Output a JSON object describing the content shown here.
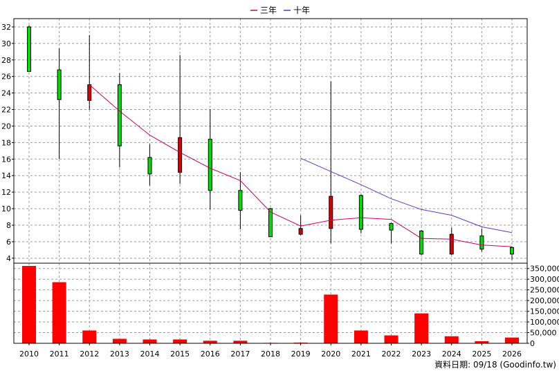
{
  "chart_data": {
    "type": "candlestick",
    "legend": [
      {
        "name": "三年",
        "color": "#cc0066"
      },
      {
        "name": "十年",
        "color": "#6633cc"
      }
    ],
    "legend_placement": "top-center",
    "grid": true,
    "price_axis": {
      "ticks": [
        4,
        6,
        8,
        10,
        12,
        14,
        16,
        18,
        20,
        22,
        24,
        26,
        28,
        30,
        32
      ],
      "ylim": [
        3.4,
        33.0
      ],
      "side": "left"
    },
    "volume_axis": {
      "ticks": [
        0,
        50000,
        100000,
        150000,
        200000,
        250000,
        300000,
        350000
      ],
      "tick_labels": [
        "0",
        "50,000",
        "100,000",
        "150,000",
        "200,000",
        "250,000",
        "300,000",
        "350,000"
      ],
      "ylim": [
        0,
        375000
      ],
      "side": "right"
    },
    "categories": [
      "2010",
      "2011",
      "2012",
      "2013",
      "2014",
      "2015",
      "2016",
      "2017",
      "2018",
      "2019",
      "2020",
      "2021",
      "2022",
      "2023",
      "2024",
      "2025",
      "2026"
    ],
    "candles": [
      {
        "open": 26.6,
        "close": 32.0,
        "high": 32.2,
        "low": 26.6
      },
      {
        "open": 23.2,
        "close": 26.8,
        "high": 29.4,
        "low": 16.0
      },
      {
        "open": 25.0,
        "close": 23.1,
        "high": 31.0,
        "low": 22.0
      },
      {
        "open": 17.6,
        "close": 25.0,
        "high": 26.4,
        "low": 15.0
      },
      {
        "open": 14.2,
        "close": 16.2,
        "high": 17.8,
        "low": 12.8
      },
      {
        "open": 18.6,
        "close": 14.4,
        "high": 28.6,
        "low": 13.0
      },
      {
        "open": 12.2,
        "close": 18.4,
        "high": 22.0,
        "low": 9.9
      },
      {
        "open": 9.8,
        "close": 12.2,
        "high": 14.4,
        "low": 7.5
      },
      {
        "open": 6.6,
        "close": 10.0,
        "high": 10.1,
        "low": 6.6
      },
      {
        "open": 7.6,
        "close": 6.9,
        "high": 9.2,
        "low": 6.8
      },
      {
        "open": 11.5,
        "close": 7.6,
        "high": 25.4,
        "low": 5.8
      },
      {
        "open": 7.5,
        "close": 11.6,
        "high": 11.7,
        "low": 7.0
      },
      {
        "open": 7.4,
        "close": 8.2,
        "high": 8.3,
        "low": 5.8
      },
      {
        "open": 4.5,
        "close": 7.3,
        "high": 7.4,
        "low": 4.4
      },
      {
        "open": 6.9,
        "close": 4.5,
        "high": 7.7,
        "low": 4.4
      },
      {
        "open": 5.1,
        "close": 6.7,
        "high": 7.6,
        "low": 4.8
      },
      {
        "open": 4.5,
        "close": 5.3,
        "high": 5.4,
        "low": 3.8
      }
    ],
    "series": [
      {
        "name": "三年",
        "values": [
          null,
          null,
          25.0,
          21.8,
          18.9,
          16.8,
          14.9,
          13.4,
          9.6,
          7.9,
          8.6,
          8.9,
          8.7,
          6.4,
          6.3,
          5.6,
          5.4
        ]
      },
      {
        "name": "十年",
        "values": [
          null,
          null,
          null,
          null,
          null,
          null,
          null,
          null,
          null,
          16.1,
          14.5,
          12.9,
          11.2,
          9.9,
          9.2,
          7.8,
          7.1
        ]
      }
    ],
    "volume": [
      362000,
      286000,
      60000,
      21000,
      18000,
      18000,
      12000,
      12000,
      2000,
      3000,
      228000,
      60000,
      37000,
      140000,
      33000,
      10000,
      27000
    ],
    "up_color": "#00dd00",
    "down_color": "#dd0000",
    "volume_color": "#ff0000",
    "source_note": "資料日期: 09/18  (Goodinfo.tw)"
  }
}
